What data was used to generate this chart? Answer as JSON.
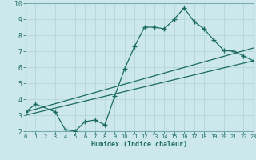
{
  "xlabel": "Humidex (Indice chaleur)",
  "xlim": [
    0,
    23
  ],
  "ylim": [
    2,
    10
  ],
  "xticks": [
    0,
    1,
    2,
    3,
    4,
    5,
    6,
    7,
    8,
    9,
    10,
    11,
    12,
    13,
    14,
    15,
    16,
    17,
    18,
    19,
    20,
    21,
    22,
    23
  ],
  "yticks": [
    2,
    3,
    4,
    5,
    6,
    7,
    8,
    9,
    10
  ],
  "bg_color": "#cce8ed",
  "line_color": "#1a6b5e",
  "grid_color": "#b8d8de",
  "line1_x": [
    0,
    1,
    3,
    4,
    5,
    6,
    7,
    8,
    9,
    10,
    11,
    12,
    13,
    14,
    15,
    16,
    17,
    18,
    19,
    20,
    21,
    22,
    23
  ],
  "line1_y": [
    3.2,
    3.7,
    3.2,
    2.1,
    2.0,
    2.6,
    2.7,
    2.4,
    4.2,
    5.9,
    7.3,
    8.5,
    8.5,
    8.4,
    9.0,
    9.7,
    8.85,
    8.4,
    7.7,
    7.05,
    7.0,
    6.7,
    6.4
  ],
  "line2_x": [
    0,
    23
  ],
  "line2_y": [
    3.0,
    6.4
  ],
  "line3_x": [
    0,
    23
  ],
  "line3_y": [
    3.2,
    7.2
  ]
}
